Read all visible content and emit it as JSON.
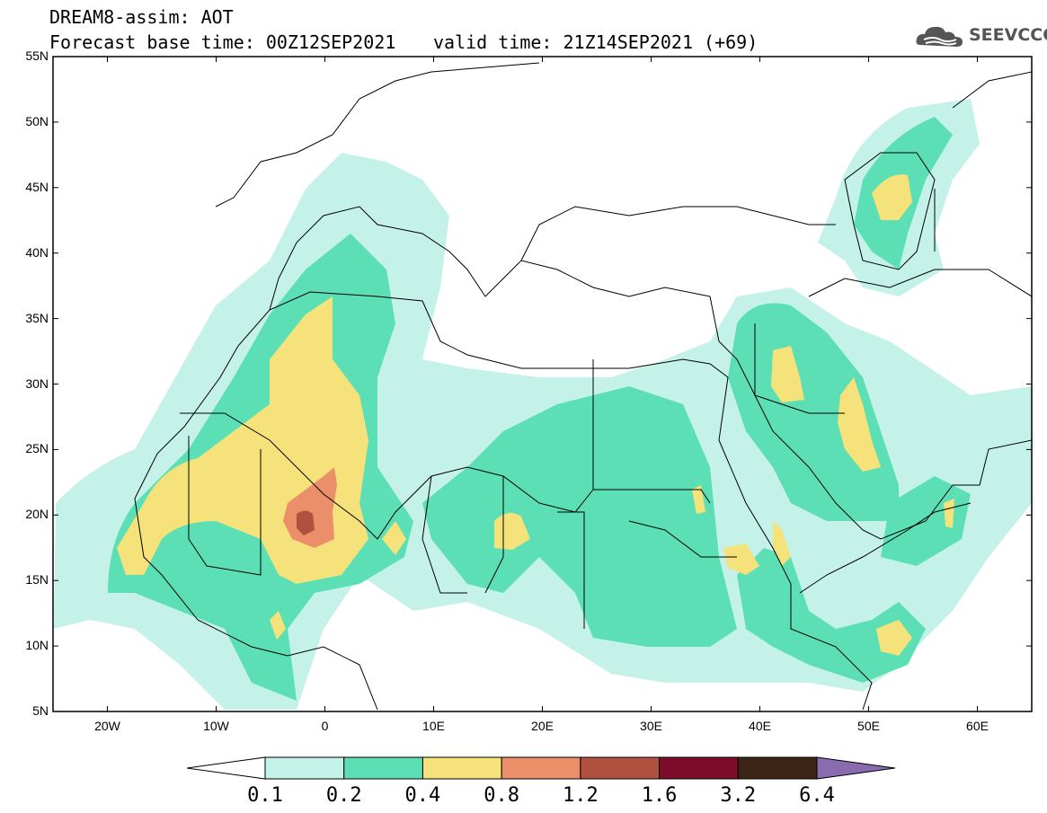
{
  "title": {
    "line1": "DREAM8-assim: AOT",
    "base_time": "Forecast base time: 00Z12SEP2021",
    "valid_time": "valid time: 21Z14SEP2021 (+69)"
  },
  "logo": {
    "text": "SEEVCCC"
  },
  "axes": {
    "lat_ticks": [
      "55N",
      "50N",
      "45N",
      "40N",
      "35N",
      "30N",
      "25N",
      "20N",
      "15N",
      "10N",
      "5N"
    ],
    "lon_ticks": [
      "20W",
      "10W",
      "0",
      "10E",
      "20E",
      "30E",
      "40E",
      "50E",
      "60E"
    ]
  },
  "colorbar": {
    "labels": [
      "0.1",
      "0.2",
      "0.4",
      "0.8",
      "1.2",
      "1.6",
      "3.2",
      "6.4"
    ],
    "colors": [
      "#ffffff",
      "#c4f2e8",
      "#5ddfb5",
      "#f6e27a",
      "#eb8f6a",
      "#b0503f",
      "#7d0d2a",
      "#3c2514",
      "#8a6bb0"
    ]
  }
}
